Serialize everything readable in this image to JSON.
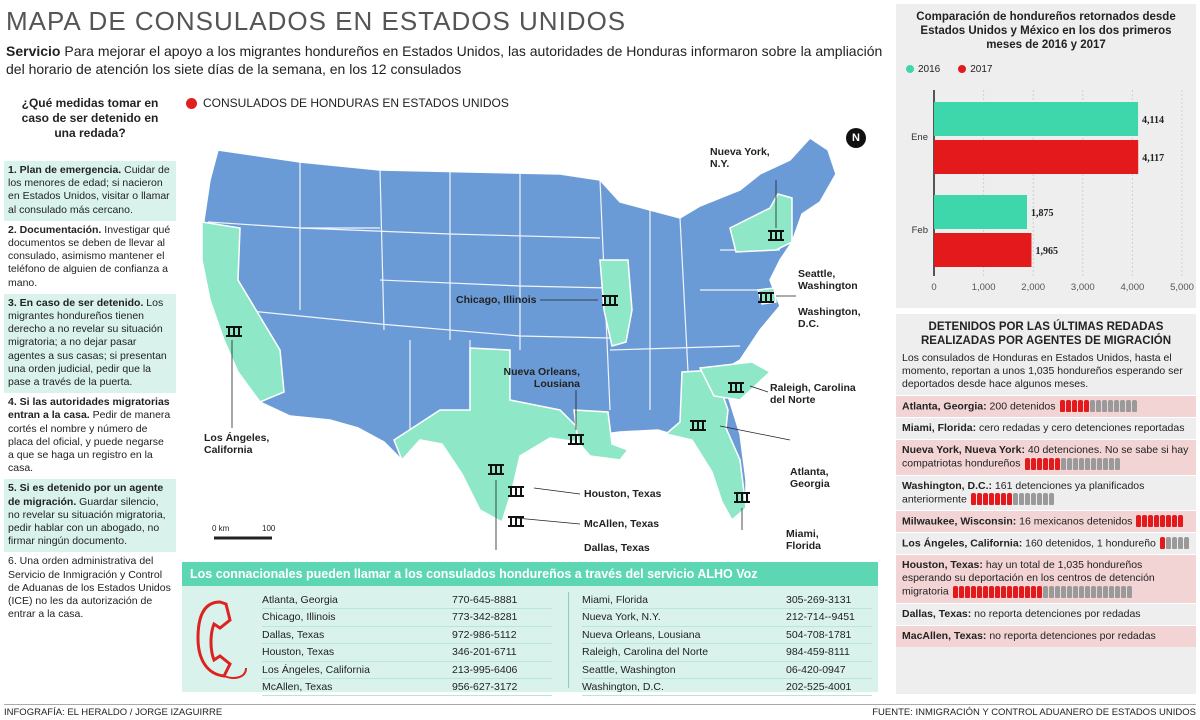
{
  "title": "MAPA DE CONSULADOS EN ESTADOS UNIDOS",
  "intro": {
    "lead": "Servicio",
    "text": " Para mejorar el apoyo a los migrantes hondureños en Estados Unidos, las autoridades de Honduras informaron sobre la ampliación del horario de atención los siete días de la semana, en los 12 consulados"
  },
  "left": {
    "question": "¿Qué medidas tomar en caso de ser detenido en una redada?",
    "items": [
      {
        "lead": "1. Plan de emergencia.",
        "text": " Cuidar de los menores de edad; si nacieron en Estados Unidos, visitar o llamar al consulado más cercano."
      },
      {
        "lead": "2. Documentación.",
        "text": " Investigar qué documentos se deben de llevar al consulado, asimismo mantener el teléfono de alguien de confianza a mano."
      },
      {
        "lead": "3. En caso de ser detenido.",
        "text": " Los migrantes hondureños tienen derecho a no revelar su situación migratoria; a no dejar pasar agentes a sus casas; si presentan una orden judicial, pedir que la pase a través de la puerta."
      },
      {
        "lead": "4. Si las autoridades migratorias entran a la casa.",
        "text": " Pedir de manera cortés el nombre y número de placa del oficial, y puede negarse a que se haga un registro en la casa."
      },
      {
        "lead": "5. Si es detenido por un agente de migración.",
        "text": " Guardar silencio, no revelar su situación migratoria, pedir hablar con un abogado, no firmar ningún documento."
      },
      {
        "lead": "",
        "text": "6. Una orden administrativa del Servicio de Inmigración y Control de Aduanas de los Estados Unidos (ICE) no les da autorización de entrar a la casa."
      }
    ]
  },
  "map": {
    "legend": "CONSULADOS DE HONDURAS EN ESTADOS UNIDOS",
    "north": "N",
    "scale": [
      "0 km",
      "100"
    ],
    "labels": {
      "ny": "Nueva York, N.Y.",
      "chicago": "Chicago, Illinois",
      "seattle": "Seattle, Washington",
      "dc": "Washington, D.C.",
      "nola": "Nueva Orleans, Lousiana",
      "raleigh": "Raleigh, Carolina del Norte",
      "la": "Los Ángeles, California",
      "atlanta": "Atlanta, Georgia",
      "houston": "Houston, Texas",
      "mcallen": "McAllen, Texas",
      "dallas": "Dallas, Texas",
      "miami": "Miami, Florida"
    },
    "colors": {
      "states": "#6b9bd6",
      "consulate_states": "#8ee8c8",
      "border": "#ffffff"
    }
  },
  "phones": {
    "heading": "Los connacionales pueden llamar a los consulados hondureños a través del servicio ALHO Voz",
    "left": [
      {
        "city": "Atlanta, Georgia",
        "phone": "770-645-8881"
      },
      {
        "city": "Chicago, Illinois",
        "phone": "773-342-8281"
      },
      {
        "city": "Dallas, Texas",
        "phone": "972-986-5112"
      },
      {
        "city": "Houston, Texas",
        "phone": "346-201-6711"
      },
      {
        "city": "Los Ángeles, California",
        "phone": "213-995-6406"
      },
      {
        "city": "McAllen, Texas",
        "phone": "956-627-3172"
      }
    ],
    "right": [
      {
        "city": "Miami, Florida",
        "phone": "305-269-3131"
      },
      {
        "city": "Nueva York, N.Y.",
        "phone": "212-714--9451"
      },
      {
        "city": "Nueva Orleans, Lousiana",
        "phone": "504-708-1781"
      },
      {
        "city": "Raleigh, Carolina del Norte",
        "phone": "984-459-8111"
      },
      {
        "city": "Seattle, Washington",
        "phone": "06-420-0947"
      },
      {
        "city": "Washington, D.C.",
        "phone": "202-525-4001"
      }
    ]
  },
  "chart_data": {
    "type": "bar",
    "title": "Comparación de hondureños retornados desde Estados Unidos y México en los dos primeros meses de 2016 y 2017",
    "categories": [
      "Ene",
      "Feb"
    ],
    "series": [
      {
        "name": "2016",
        "values": [
          4114,
          1875
        ],
        "color": "#3ed6ab"
      },
      {
        "name": "2017",
        "values": [
          4117,
          1965
        ],
        "color": "#e3191c"
      }
    ],
    "value_labels": [
      [
        "4,114",
        "1,875"
      ],
      [
        "4,117",
        "1,965"
      ]
    ],
    "xlim": [
      0,
      5000
    ],
    "xticks": [
      "0",
      "1,000",
      "2,000",
      "3,000",
      "4,000",
      "5,000"
    ],
    "orientation": "horizontal"
  },
  "detentions": {
    "title": "DETENIDOS POR LAS ÚLTIMAS REDADAS REALIZADAS POR AGENTES DE MIGRACIÓN",
    "intro": "Los consulados de Honduras en Estados Unidos, hasta el momento, reportan a unos 1,035 hondureños esperando ser deportados desde hace algunos meses.",
    "rows": [
      {
        "city": "Atlanta, Georgia:",
        "text": " 200 detenidos",
        "pink": true,
        "red": 5,
        "gray": 8
      },
      {
        "city": "Miami, Florida:",
        "text": " cero redadas y cero detenciones reportadas",
        "pink": false,
        "red": 0,
        "gray": 0
      },
      {
        "city": "Nueva York, Nueva York:",
        "text": " 40 detenciones. No se sabe si hay compatriotas hondureños",
        "pink": true,
        "red": 6,
        "gray": 10
      },
      {
        "city": "Washington, D.C.:",
        "text": " 161 detenciones ya planificados anteriormente",
        "pink": false,
        "red": 7,
        "gray": 7
      },
      {
        "city": "Milwaukee, Wisconsin:",
        "text": " 16 mexicanos detenidos",
        "pink": true,
        "red": 8,
        "gray": 0
      },
      {
        "city": "Los Ángeles, California:",
        "text": " 160 detenidos, 1 hondureño",
        "pink": false,
        "red": 1,
        "gray": 4
      },
      {
        "city": "Houston, Texas:",
        "text": " hay un total de 1,035 hondureños esperando su deportación en los centros de detención migratoria",
        "pink": true,
        "red": 15,
        "gray": 15
      },
      {
        "city": "Dallas, Texas:",
        "text": " no reporta detenciones por redadas",
        "pink": false,
        "red": 0,
        "gray": 0
      },
      {
        "city": "MacAllen, Texas:",
        "text": " no reporta detenciones por redadas",
        "pink": true,
        "red": 0,
        "gray": 0
      }
    ]
  },
  "footer": {
    "left": "INFOGRAFÍA: EL HERALDO / JORGE IZAGUIRRE",
    "right": "FUENTE: INMIGRACIÓN Y CONTROL ADUANERO DE ESTADOS UNIDOS"
  }
}
